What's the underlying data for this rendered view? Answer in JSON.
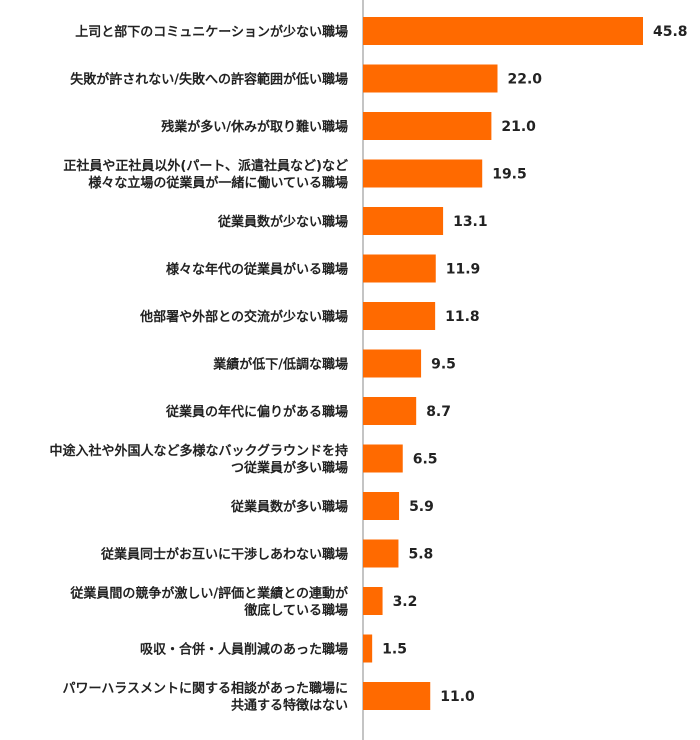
{
  "chart_data": {
    "type": "bar",
    "orientation": "horizontal",
    "title": "",
    "xlabel": "",
    "ylabel": "",
    "xlim": [
      0,
      50
    ],
    "grid": false,
    "legend": "none",
    "bar_color": "#ff6a00",
    "categories": [
      [
        "上司と部下のコミュニケーションが少ない職場"
      ],
      [
        "失敗が許されない/失敗への許容範囲が低い職場"
      ],
      [
        "残業が多い/休みが取り難い職場"
      ],
      [
        "正社員や正社員以外(パート、派遣社員など)など",
        "様々な立場の従業員が一緒に働いている職場"
      ],
      [
        "従業員数が少ない職場"
      ],
      [
        "様々な年代の従業員がいる職場"
      ],
      [
        "他部署や外部との交流が少ない職場"
      ],
      [
        "業績が低下/低調な職場"
      ],
      [
        "従業員の年代に偏りがある職場"
      ],
      [
        "中途入社や外国人など多様なバックグラウンドを持",
        "つ従業員が多い職場"
      ],
      [
        "従業員数が多い職場"
      ],
      [
        "従業員同士がお互いに干渉しあわない職場"
      ],
      [
        "従業員間の競争が激しい/評価と業績との連動が",
        "徹底している職場"
      ],
      [
        "吸収・合併・人員削減のあった職場"
      ],
      [
        "パワーハラスメントに関する相談があった職場に",
        "共通する特徴はない"
      ]
    ],
    "values": [
      45.8,
      22.0,
      21.0,
      19.5,
      13.1,
      11.9,
      11.8,
      9.5,
      8.7,
      6.5,
      5.9,
      5.8,
      3.2,
      1.5,
      11.0
    ],
    "value_labels": [
      "45.8",
      "22.0",
      "21.0",
      "19.5",
      "13.1",
      "11.9",
      "11.8",
      "9.5",
      "8.7",
      "6.5",
      "5.9",
      "5.8",
      "3.2",
      "1.5",
      "11.0"
    ]
  }
}
